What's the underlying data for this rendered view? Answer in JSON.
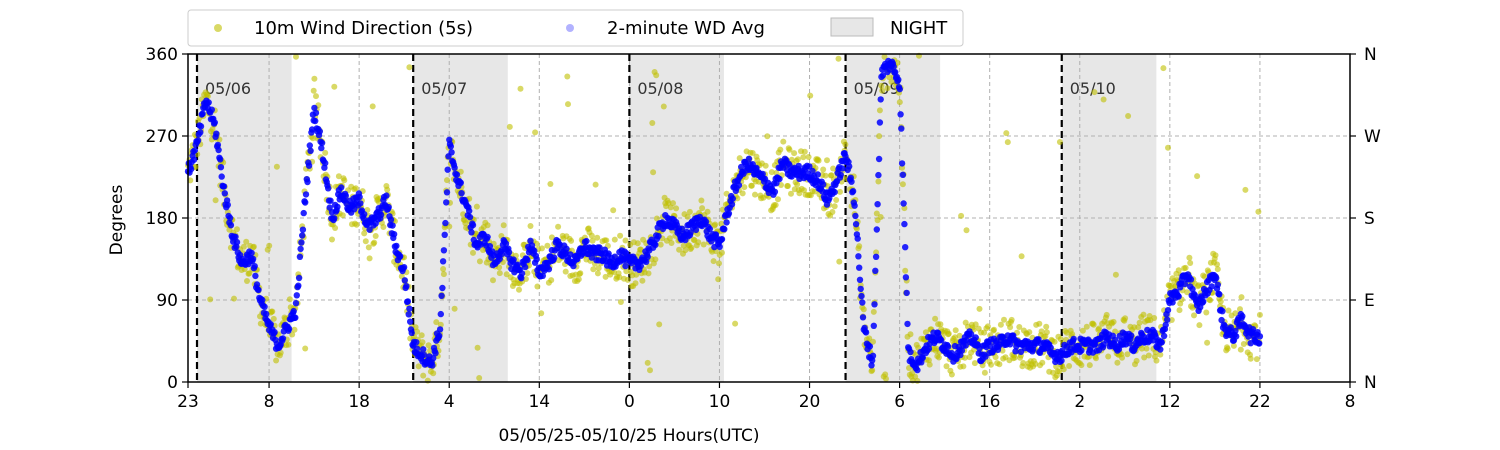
{
  "chart_data": {
    "type": "scatter",
    "xlabel": "05/05/25-05/10/25  Hours(UTC)",
    "ylabel": "Degrees",
    "x_range_hours": [
      0,
      129
    ],
    "x_start_label": "23",
    "ylim": [
      0,
      360
    ],
    "y_ticks": [
      0,
      90,
      180,
      270,
      360
    ],
    "y_tick_labels": [
      "0",
      "90",
      "180",
      "270",
      "360"
    ],
    "right_tick_labels": [
      "N",
      "E",
      "S",
      "W",
      "N"
    ],
    "x_ticks_hours": [
      0,
      9,
      19,
      29,
      39,
      49,
      59,
      69,
      79,
      89,
      99,
      109,
      119,
      129
    ],
    "x_tick_labels": [
      "23",
      "8",
      "18",
      "4",
      "14",
      "0",
      "10",
      "20",
      "6",
      "16",
      "2",
      "12",
      "22",
      "8"
    ],
    "grid": true,
    "legend_position": "top",
    "day_markers": [
      {
        "hour": 1,
        "label": "05/06"
      },
      {
        "hour": 25,
        "label": "05/07"
      },
      {
        "hour": 49,
        "label": "05/08"
      },
      {
        "hour": 73,
        "label": "05/09"
      },
      {
        "hour": 97,
        "label": "05/10"
      }
    ],
    "night_spans": [
      {
        "start": 1,
        "end": 11.5
      },
      {
        "start": 25,
        "end": 35.5
      },
      {
        "start": 49,
        "end": 59.5
      },
      {
        "start": 73,
        "end": 83.5
      },
      {
        "start": 97,
        "end": 107.5
      }
    ],
    "series": [
      {
        "name": "10m Wind Direction (5s)",
        "color": "#bfbf00",
        "spread": 25,
        "points": 1400,
        "trace": [
          [
            0,
            230
          ],
          [
            1,
            260
          ],
          [
            2,
            310
          ],
          [
            3,
            280
          ],
          [
            4,
            210
          ],
          [
            5,
            160
          ],
          [
            6,
            130
          ],
          [
            7,
            140
          ],
          [
            8,
            90
          ],
          [
            9,
            60
          ],
          [
            10,
            40
          ],
          [
            11,
            60
          ],
          [
            12,
            80
          ],
          [
            13,
            200
          ],
          [
            14,
            300
          ],
          [
            15,
            250
          ],
          [
            16,
            180
          ],
          [
            17,
            210
          ],
          [
            18,
            190
          ],
          [
            19,
            200
          ],
          [
            20,
            170
          ],
          [
            21,
            180
          ],
          [
            22,
            200
          ],
          [
            23,
            150
          ],
          [
            24,
            120
          ],
          [
            25,
            40
          ],
          [
            26,
            30
          ],
          [
            27,
            20
          ],
          [
            28,
            60
          ],
          [
            29,
            260
          ],
          [
            30,
            220
          ],
          [
            31,
            190
          ],
          [
            32,
            150
          ],
          [
            33,
            160
          ],
          [
            34,
            130
          ],
          [
            35,
            150
          ],
          [
            36,
            130
          ],
          [
            37,
            120
          ],
          [
            38,
            150
          ],
          [
            39,
            120
          ],
          [
            40,
            130
          ],
          [
            41,
            150
          ],
          [
            42,
            140
          ],
          [
            43,
            130
          ],
          [
            44,
            150
          ],
          [
            45,
            140
          ],
          [
            46,
            140
          ],
          [
            47,
            130
          ],
          [
            48,
            140
          ],
          [
            49,
            130
          ],
          [
            50,
            130
          ],
          [
            51,
            140
          ],
          [
            52,
            160
          ],
          [
            53,
            180
          ],
          [
            54,
            170
          ],
          [
            55,
            160
          ],
          [
            56,
            170
          ],
          [
            57,
            180
          ],
          [
            58,
            160
          ],
          [
            59,
            150
          ],
          [
            60,
            190
          ],
          [
            61,
            220
          ],
          [
            62,
            240
          ],
          [
            63,
            230
          ],
          [
            64,
            220
          ],
          [
            65,
            210
          ],
          [
            66,
            240
          ],
          [
            67,
            230
          ],
          [
            68,
            230
          ],
          [
            69,
            230
          ],
          [
            70,
            220
          ],
          [
            71,
            200
          ],
          [
            72,
            220
          ],
          [
            73,
            250
          ],
          [
            74,
            200
          ],
          [
            75,
            60
          ],
          [
            76,
            20
          ],
          [
            77,
            340
          ],
          [
            78,
            350
          ],
          [
            79,
            330
          ],
          [
            80,
            30
          ],
          [
            81,
            20
          ],
          [
            82,
            40
          ],
          [
            83,
            50
          ],
          [
            84,
            40
          ],
          [
            85,
            30
          ],
          [
            86,
            40
          ],
          [
            87,
            50
          ],
          [
            88,
            30
          ],
          [
            89,
            40
          ],
          [
            90,
            40
          ],
          [
            91,
            50
          ],
          [
            92,
            40
          ],
          [
            93,
            40
          ],
          [
            94,
            40
          ],
          [
            95,
            40
          ],
          [
            96,
            30
          ],
          [
            97,
            30
          ],
          [
            98,
            40
          ],
          [
            99,
            40
          ],
          [
            100,
            40
          ],
          [
            101,
            40
          ],
          [
            102,
            50
          ],
          [
            103,
            40
          ],
          [
            104,
            50
          ],
          [
            105,
            40
          ],
          [
            106,
            50
          ],
          [
            107,
            50
          ],
          [
            108,
            40
          ],
          [
            109,
            90
          ],
          [
            110,
            100
          ],
          [
            111,
            120
          ],
          [
            112,
            80
          ],
          [
            113,
            100
          ],
          [
            114,
            120
          ],
          [
            115,
            60
          ],
          [
            116,
            50
          ],
          [
            117,
            70
          ],
          [
            118,
            50
          ],
          [
            119,
            50
          ]
        ]
      },
      {
        "name": "2-minute WD Avg",
        "color": "#0000ff",
        "spread": 8,
        "points": 1400,
        "trace": [
          [
            0,
            230
          ],
          [
            1,
            260
          ],
          [
            2,
            310
          ],
          [
            3,
            280
          ],
          [
            4,
            210
          ],
          [
            5,
            160
          ],
          [
            6,
            130
          ],
          [
            7,
            140
          ],
          [
            8,
            90
          ],
          [
            9,
            60
          ],
          [
            10,
            40
          ],
          [
            11,
            60
          ],
          [
            12,
            80
          ],
          [
            13,
            200
          ],
          [
            14,
            300
          ],
          [
            15,
            250
          ],
          [
            16,
            180
          ],
          [
            17,
            210
          ],
          [
            18,
            190
          ],
          [
            19,
            200
          ],
          [
            20,
            170
          ],
          [
            21,
            180
          ],
          [
            22,
            200
          ],
          [
            23,
            150
          ],
          [
            24,
            120
          ],
          [
            25,
            40
          ],
          [
            26,
            30
          ],
          [
            27,
            20
          ],
          [
            28,
            60
          ],
          [
            29,
            260
          ],
          [
            30,
            220
          ],
          [
            31,
            190
          ],
          [
            32,
            150
          ],
          [
            33,
            160
          ],
          [
            34,
            130
          ],
          [
            35,
            150
          ],
          [
            36,
            130
          ],
          [
            37,
            120
          ],
          [
            38,
            150
          ],
          [
            39,
            120
          ],
          [
            40,
            130
          ],
          [
            41,
            150
          ],
          [
            42,
            140
          ],
          [
            43,
            130
          ],
          [
            44,
            150
          ],
          [
            45,
            140
          ],
          [
            46,
            140
          ],
          [
            47,
            130
          ],
          [
            48,
            140
          ],
          [
            49,
            130
          ],
          [
            50,
            130
          ],
          [
            51,
            140
          ],
          [
            52,
            160
          ],
          [
            53,
            180
          ],
          [
            54,
            170
          ],
          [
            55,
            160
          ],
          [
            56,
            170
          ],
          [
            57,
            180
          ],
          [
            58,
            160
          ],
          [
            59,
            150
          ],
          [
            60,
            190
          ],
          [
            61,
            220
          ],
          [
            62,
            240
          ],
          [
            63,
            230
          ],
          [
            64,
            220
          ],
          [
            65,
            210
          ],
          [
            66,
            240
          ],
          [
            67,
            230
          ],
          [
            68,
            230
          ],
          [
            69,
            230
          ],
          [
            70,
            220
          ],
          [
            71,
            200
          ],
          [
            72,
            220
          ],
          [
            73,
            250
          ],
          [
            74,
            200
          ],
          [
            75,
            60
          ],
          [
            76,
            20
          ],
          [
            77,
            340
          ],
          [
            78,
            350
          ],
          [
            79,
            330
          ],
          [
            80,
            30
          ],
          [
            81,
            20
          ],
          [
            82,
            40
          ],
          [
            83,
            50
          ],
          [
            84,
            40
          ],
          [
            85,
            30
          ],
          [
            86,
            40
          ],
          [
            87,
            50
          ],
          [
            88,
            30
          ],
          [
            89,
            40
          ],
          [
            90,
            40
          ],
          [
            91,
            50
          ],
          [
            92,
            40
          ],
          [
            93,
            40
          ],
          [
            94,
            40
          ],
          [
            95,
            40
          ],
          [
            96,
            30
          ],
          [
            97,
            30
          ],
          [
            98,
            40
          ],
          [
            99,
            40
          ],
          [
            100,
            40
          ],
          [
            101,
            40
          ],
          [
            102,
            50
          ],
          [
            103,
            40
          ],
          [
            104,
            50
          ],
          [
            105,
            40
          ],
          [
            106,
            50
          ],
          [
            107,
            50
          ],
          [
            108,
            40
          ],
          [
            109,
            90
          ],
          [
            110,
            100
          ],
          [
            111,
            120
          ],
          [
            112,
            80
          ],
          [
            113,
            100
          ],
          [
            114,
            120
          ],
          [
            115,
            60
          ],
          [
            116,
            50
          ],
          [
            117,
            70
          ],
          [
            118,
            50
          ],
          [
            119,
            50
          ]
        ]
      }
    ],
    "night_label": "NIGHT",
    "night_color": "#d3d3d3"
  }
}
